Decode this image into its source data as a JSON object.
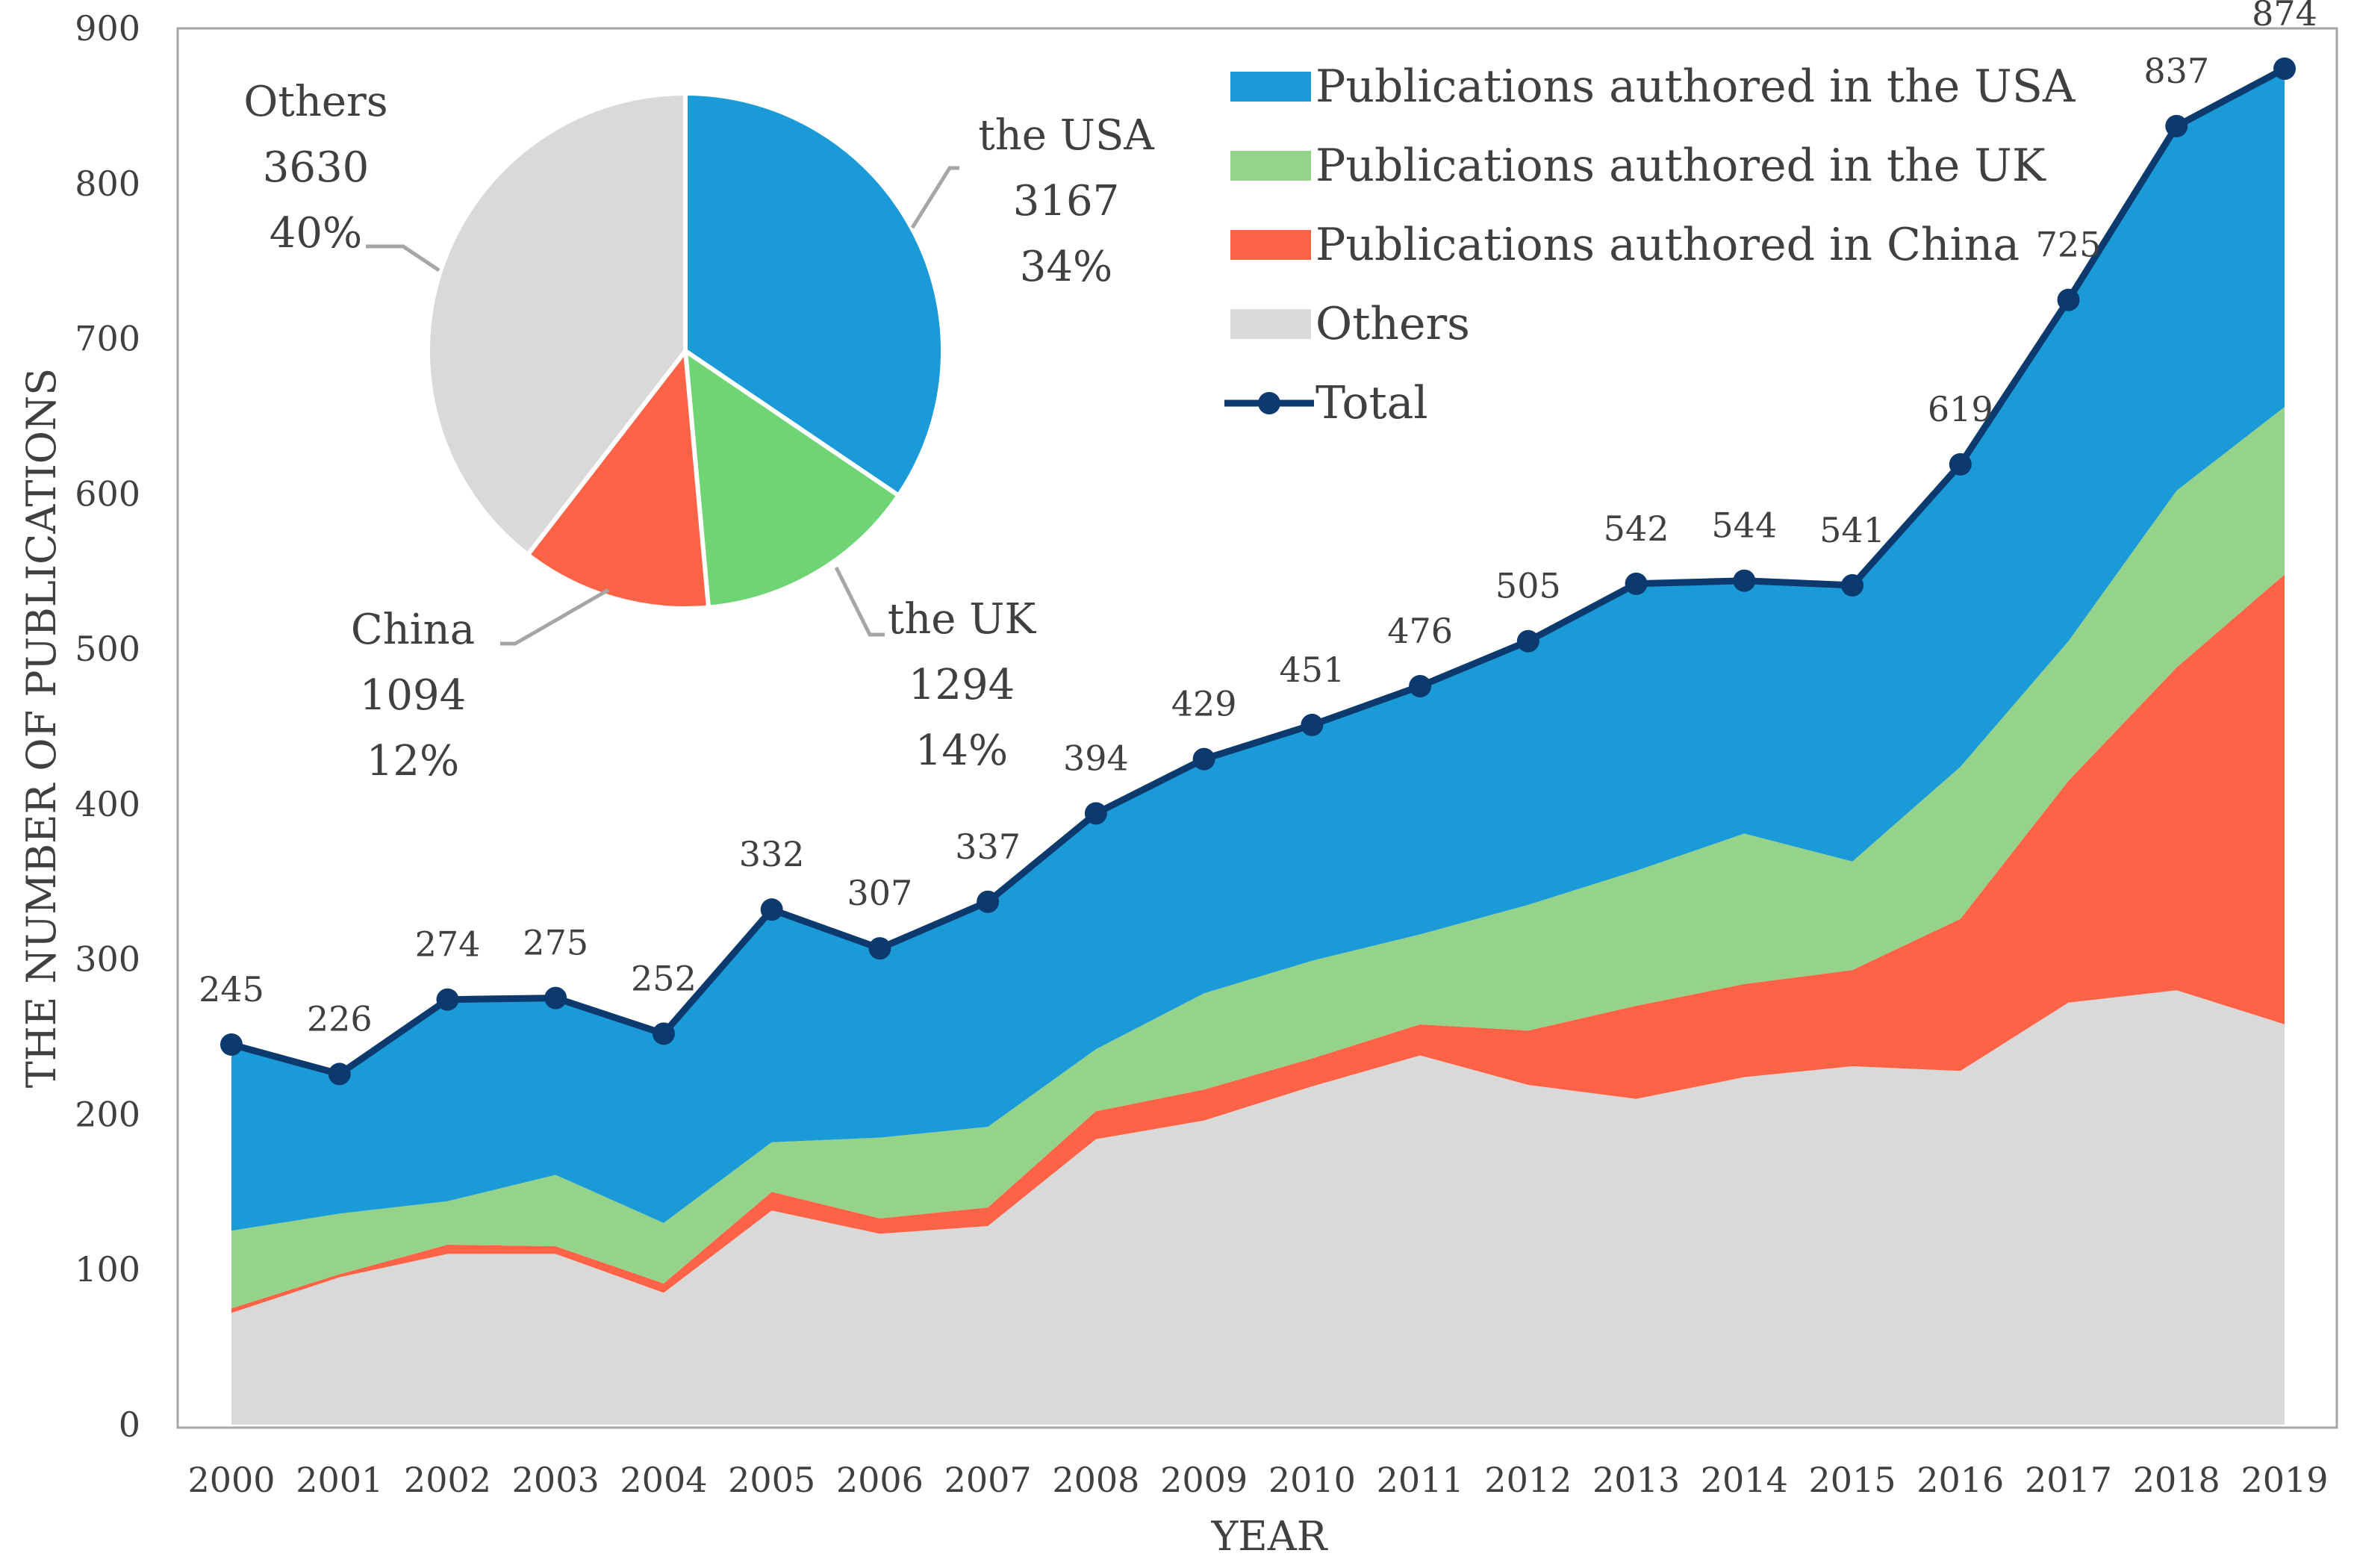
{
  "chart_data": [
    {
      "type": "area",
      "stacked": true,
      "xlabel": "YEAR",
      "ylabel": "THE NUMBER OF PUBLICATIONS",
      "ylim": [
        0,
        900
      ],
      "ytick_step": 100,
      "grid": false,
      "legend_position": "top-right",
      "categories": [
        "2000",
        "2001",
        "2002",
        "2003",
        "2004",
        "2005",
        "2006",
        "2007",
        "2008",
        "2009",
        "2010",
        "2011",
        "2012",
        "2013",
        "2014",
        "2015",
        "2016",
        "2017",
        "2018",
        "2019"
      ],
      "series": [
        {
          "name": "Others",
          "color": "#d9d9d9",
          "values": [
            72,
            95,
            110,
            110,
            85,
            138,
            123,
            128,
            184,
            196,
            218,
            238,
            219,
            210,
            224,
            231,
            228,
            272,
            280,
            258
          ]
        },
        {
          "name": "Publications authored in China",
          "color": "#ff6347",
          "values": [
            3,
            2,
            6,
            5,
            6,
            12,
            10,
            12,
            18,
            20,
            18,
            20,
            35,
            60,
            60,
            62,
            98,
            143,
            208,
            290
          ]
        },
        {
          "name": "Publications authored in the UK",
          "color": "#95d38b",
          "values": [
            50,
            39,
            28,
            46,
            39,
            32,
            52,
            52,
            40,
            62,
            63,
            58,
            81,
            87,
            97,
            70,
            98,
            90,
            114,
            108
          ]
        },
        {
          "name": "Publications authored in the USA",
          "color": "#1a9bd7",
          "values": [
            120,
            90,
            130,
            114,
            122,
            150,
            122,
            145,
            152,
            151,
            152,
            160,
            170,
            185,
            163,
            178,
            195,
            220,
            235,
            218
          ]
        }
      ],
      "total": {
        "name": "Total",
        "color": "#0d3a6e",
        "values": [
          245,
          226,
          274,
          275,
          252,
          332,
          307,
          337,
          394,
          429,
          451,
          476,
          505,
          542,
          544,
          541,
          619,
          725,
          837,
          874
        ]
      }
    },
    {
      "type": "pie",
      "slices": [
        {
          "label": "the USA",
          "value": 3167,
          "percent": "34%",
          "color": "#1a9bd7"
        },
        {
          "label": "the UK",
          "value": 1294,
          "percent": "14%",
          "color": "#6ed474"
        },
        {
          "label": "China",
          "value": 1094,
          "percent": "12%",
          "color": "#ff6347"
        },
        {
          "label": "Others",
          "value": 3630,
          "percent": "40%",
          "color": "#d9d9d9"
        }
      ]
    }
  ]
}
